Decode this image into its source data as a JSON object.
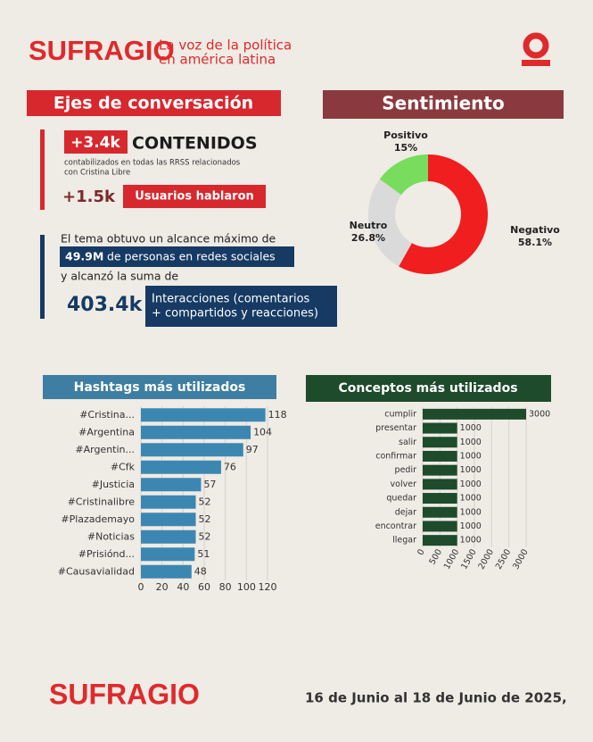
{
  "header": {
    "brand": "SUFRAGIO",
    "tagline": [
      "La voz de la política",
      "en américa latina"
    ]
  },
  "conversation": {
    "title": "Ejes de conversación",
    "contents_count": "+3.4k",
    "contents_label": "CONTENIDOS",
    "contents_note": [
      "contabilizados en todas las RRSS relacionados",
      "con Cristina Libre"
    ],
    "users_count": "+1.5k",
    "users_label": "Usuarios hablaron",
    "reach_intro": "El tema obtuvo un alcance máximo de",
    "reach_value": "49.9M",
    "reach_label": "de personas en redes sociales",
    "sum_intro": "y alcanzó la suma de",
    "interactions_value": "403.4k",
    "interactions_label": [
      "Interacciones (comentarios",
      "+ compartidos y reacciones)"
    ]
  },
  "chart_data": [
    {
      "type": "donut",
      "title": "Sentimiento",
      "categories": [
        "Negativo",
        "Neutro",
        "Positivo"
      ],
      "values": [
        58.1,
        26.8,
        15
      ],
      "value_labels": [
        "58.1%",
        "26.8%",
        "15%"
      ],
      "colors": [
        "#f01e1e",
        "#dadada",
        "#78dc5c"
      ]
    },
    {
      "type": "barh",
      "title": "Hashtags más utilizados",
      "categories": [
        "#Cristina...",
        "#Argentina",
        "#Argentin...",
        "#Cfk",
        "#Justicia",
        "#Cristinalibre",
        "#Plazademayo",
        "#Noticias",
        "#Prisiónd...",
        "#Causavialidad"
      ],
      "values": [
        118,
        104,
        97,
        76,
        57,
        52,
        52,
        52,
        51,
        48
      ],
      "color": "#3c87b2",
      "xlim": [
        0,
        120
      ],
      "xticks": [
        0,
        20,
        40,
        60,
        80,
        100,
        120
      ],
      "grid": true
    },
    {
      "type": "barh",
      "title": "Conceptos más utilizados",
      "categories": [
        "cumplir",
        "presentar",
        "salir",
        "confirmar",
        "pedir",
        "volver",
        "quedar",
        "dejar",
        "encontrar",
        "llegar"
      ],
      "values": [
        3000,
        1000,
        1000,
        1000,
        1000,
        1000,
        1000,
        1000,
        1000,
        1000
      ],
      "color": "#1d4b2b",
      "xlim": [
        0,
        3000
      ],
      "xticks": [
        0,
        500,
        1000,
        1500,
        2000,
        2500,
        3000
      ],
      "grid": true
    }
  ],
  "footer": {
    "brand": "SUFRAGIO",
    "date": "16 de Junio al 18 de Junio de 2025,"
  }
}
